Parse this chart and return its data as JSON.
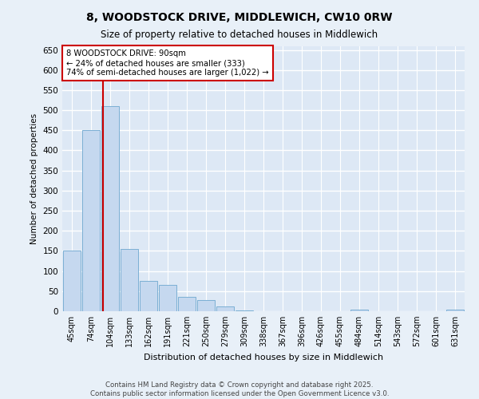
{
  "title_line1": "8, WOODSTOCK DRIVE, MIDDLEWICH, CW10 0RW",
  "title_line2": "Size of property relative to detached houses in Middlewich",
  "xlabel": "Distribution of detached houses by size in Middlewich",
  "ylabel": "Number of detached properties",
  "categories": [
    "45sqm",
    "74sqm",
    "104sqm",
    "133sqm",
    "162sqm",
    "191sqm",
    "221sqm",
    "250sqm",
    "279sqm",
    "309sqm",
    "338sqm",
    "367sqm",
    "396sqm",
    "426sqm",
    "455sqm",
    "484sqm",
    "514sqm",
    "543sqm",
    "572sqm",
    "601sqm",
    "631sqm"
  ],
  "values": [
    150,
    450,
    510,
    155,
    75,
    65,
    35,
    28,
    12,
    2,
    0,
    0,
    0,
    0,
    0,
    3,
    0,
    0,
    0,
    0,
    3
  ],
  "bar_color": "#c5d8ef",
  "bar_edge_color": "#7bafd4",
  "vline_x": 1.62,
  "vline_color": "#cc0000",
  "annotation_text": "8 WOODSTOCK DRIVE: 90sqm\n← 24% of detached houses are smaller (333)\n74% of semi-detached houses are larger (1,022) →",
  "annotation_box_color": "#cc0000",
  "ylim": [
    0,
    660
  ],
  "yticks": [
    0,
    50,
    100,
    150,
    200,
    250,
    300,
    350,
    400,
    450,
    500,
    550,
    600,
    650
  ],
  "background_color": "#dde8f5",
  "grid_color": "#ffffff",
  "fig_bg_color": "#e8f0f8",
  "footer_line1": "Contains HM Land Registry data © Crown copyright and database right 2025.",
  "footer_line2": "Contains public sector information licensed under the Open Government Licence v3.0."
}
